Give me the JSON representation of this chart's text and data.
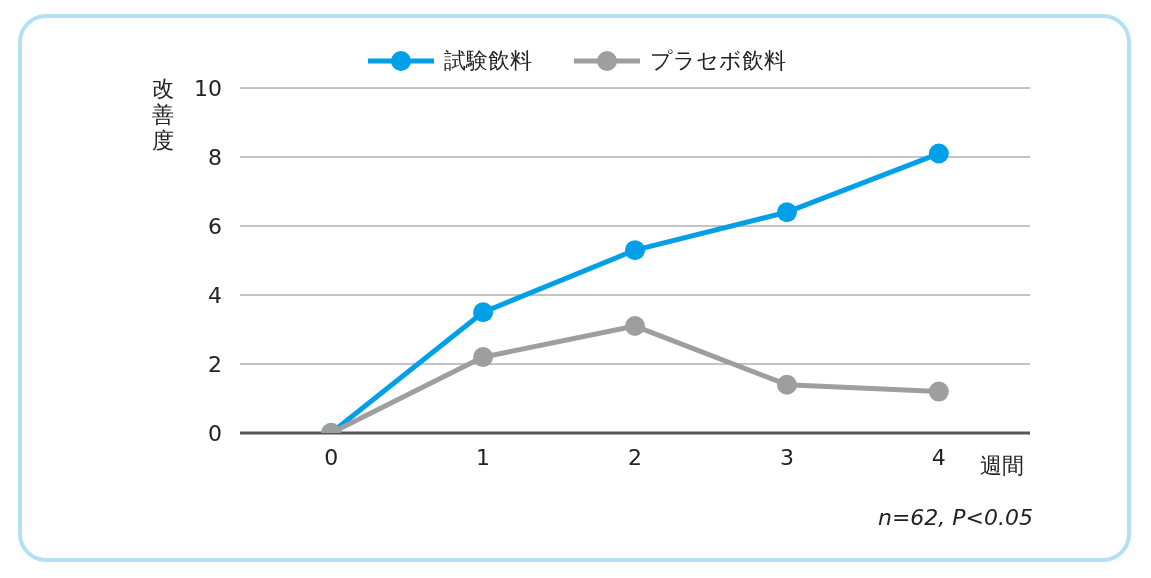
{
  "chart_data": {
    "type": "line",
    "xlabel": "週間",
    "ylabel": "改善度",
    "x": [
      0,
      1,
      2,
      3,
      4
    ],
    "series": [
      {
        "name": "試験飲料",
        "color": "#009fe8",
        "values": [
          0,
          3.5,
          5.3,
          6.4,
          8.1
        ]
      },
      {
        "name": "プラセボ飲料",
        "color": "#9e9e9e",
        "values": [
          0,
          2.2,
          3.1,
          1.4,
          1.2
        ]
      }
    ],
    "xlim": [
      -0.6,
      4.6
    ],
    "xticks": [
      0,
      1,
      2,
      3,
      4
    ],
    "ylim": [
      0,
      10
    ],
    "yticks": [
      0,
      2,
      4,
      6,
      8,
      10
    ],
    "grid": "y",
    "legend": "top",
    "marker": "circle",
    "line_style": "solid",
    "annotations": [
      "n=62, P<0.05"
    ]
  }
}
